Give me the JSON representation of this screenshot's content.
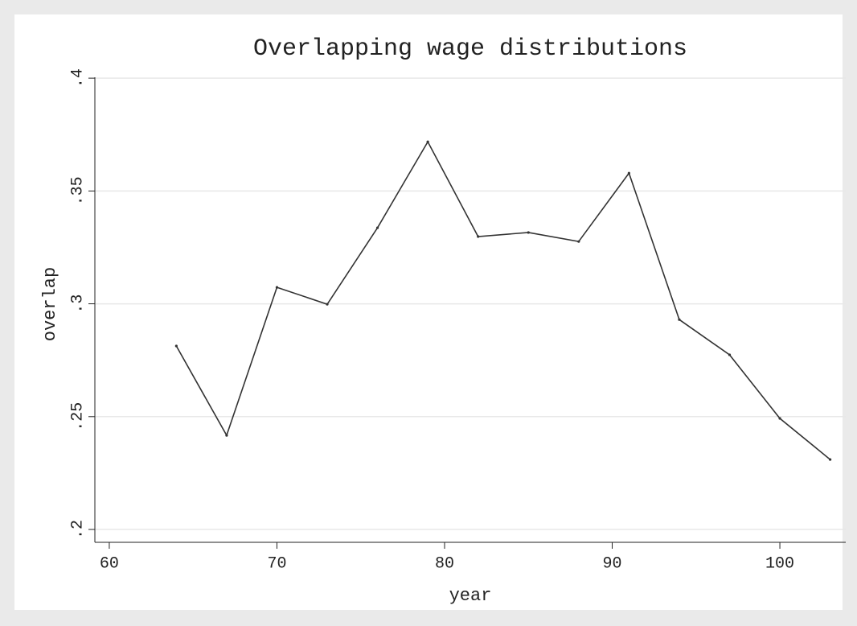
{
  "chart_data": {
    "type": "line",
    "title": "Overlapping wage distributions",
    "x_label": "year",
    "y_label": "overlap",
    "x": [
      64,
      67,
      70,
      73,
      76,
      79,
      82,
      85,
      88,
      91,
      94,
      97,
      100,
      103
    ],
    "series": [
      {
        "name": "overlap",
        "color": "#333333",
        "values": [
          0.2813,
          0.2417,
          0.3073,
          0.2998,
          0.3337,
          0.3718,
          0.3298,
          0.3316,
          0.3276,
          0.3579,
          0.293,
          0.2774,
          0.2492,
          0.231
        ]
      }
    ],
    "xlim": [
      59.14,
      103.93
    ],
    "xticks": [
      60,
      70,
      80,
      90,
      100
    ],
    "ylim": [
      0.1943,
      0.4004
    ],
    "yticks": [
      {
        "value": 0.2,
        "label": ".2"
      },
      {
        "value": 0.25,
        "label": ".25"
      },
      {
        "value": 0.3,
        "label": ".3"
      },
      {
        "value": 0.35,
        "label": ".35"
      },
      {
        "value": 0.4,
        "label": ".4"
      }
    ],
    "grid": true
  }
}
